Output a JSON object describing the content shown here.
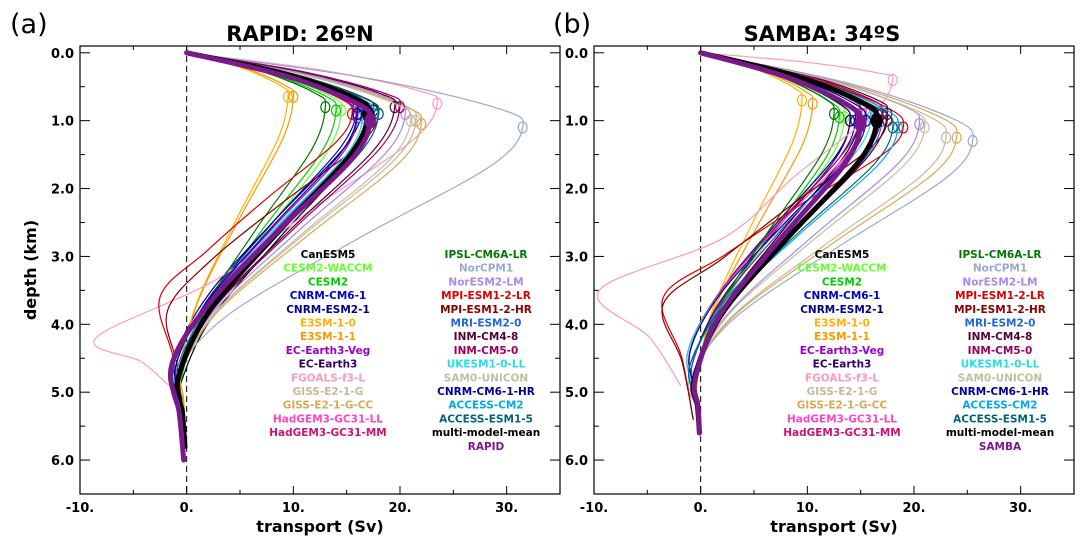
{
  "chart_data": [
    {
      "type": "line",
      "panel_label": "(a)",
      "title": "RAPID: 26ºN",
      "xlabel": "transport (Sv)",
      "ylabel": "depth (km)",
      "xlim": [
        -10,
        35
      ],
      "ylim": [
        6.5,
        -0.1
      ],
      "x_ticks": [
        "-10.",
        "0.",
        "10.",
        "20.",
        "30."
      ],
      "y_ticks": [
        "0.0",
        "1.0",
        "2.0",
        "3.0",
        "4.0",
        "5.0",
        "6.0"
      ],
      "legend_placement": "lower-right",
      "series": [
        {
          "name": "CanESM5",
          "color": "#000000",
          "peak": 17.5,
          "peak_depth": 0.85,
          "min": -0.8,
          "min_depth": 5.0,
          "max_depth": 5.6,
          "width": 1.2
        },
        {
          "name": "CESM2-WACCM",
          "color": "#66ff33",
          "peak": 14.5,
          "peak_depth": 0.85,
          "min": -0.8,
          "min_depth": 4.9,
          "max_depth": 5.6,
          "width": 1.2
        },
        {
          "name": "CESM2",
          "color": "#00cc00",
          "peak": 14.0,
          "peak_depth": 0.85,
          "min": -0.5,
          "min_depth": 4.8,
          "max_depth": 5.6,
          "width": 1.2
        },
        {
          "name": "CNRM-CM6-1",
          "color": "#0000cc",
          "peak": 16.0,
          "peak_depth": 0.8,
          "min": -1.0,
          "min_depth": 4.6,
          "max_depth": 5.6,
          "width": 1.2
        },
        {
          "name": "CNRM-ESM2-1",
          "color": "#00008b",
          "peak": 16.5,
          "peak_depth": 0.8,
          "min": -1.1,
          "min_depth": 4.5,
          "max_depth": 5.6,
          "width": 1.2
        },
        {
          "name": "E3SM-1-0",
          "color": "#ffb000",
          "peak": 9.5,
          "peak_depth": 0.65,
          "min": -0.6,
          "min_depth": 4.6,
          "max_depth": 5.6,
          "width": 1.2
        },
        {
          "name": "E3SM-1-1",
          "color": "#f59a00",
          "peak": 10.0,
          "peak_depth": 0.65,
          "min": -0.6,
          "min_depth": 4.6,
          "max_depth": 5.6,
          "width": 1.2
        },
        {
          "name": "EC-Earth3-Veg",
          "color": "#9900cc",
          "peak": 16.0,
          "peak_depth": 0.95,
          "min": -1.2,
          "min_depth": 4.6,
          "max_depth": 5.6,
          "width": 1.2
        },
        {
          "name": "EC-Earth3",
          "color": "#330066",
          "peak": 17.0,
          "peak_depth": 0.95,
          "min": -1.2,
          "min_depth": 4.6,
          "max_depth": 5.6,
          "width": 1.2
        },
        {
          "name": "FGOALS-f3-L",
          "color": "#ff99bb",
          "peak": 23.5,
          "peak_depth": 0.75,
          "min": -8.5,
          "min_depth": 4.2,
          "max_depth": 4.9,
          "width": 1.2
        },
        {
          "name": "GISS-E2-1-G",
          "color": "#c8b89a",
          "peak": 21.5,
          "peak_depth": 1.0,
          "min": -0.7,
          "min_depth": 4.8,
          "max_depth": 5.6,
          "width": 1.2
        },
        {
          "name": "GISS-E2-1-G-CC",
          "color": "#d4aa55",
          "peak": 22.0,
          "peak_depth": 1.05,
          "min": -0.7,
          "min_depth": 4.8,
          "max_depth": 5.6,
          "width": 1.2
        },
        {
          "name": "HadGEM3-GC31-LL",
          "color": "#ff44cc",
          "peak": 16.5,
          "peak_depth": 0.95,
          "min": -1.4,
          "min_depth": 4.6,
          "max_depth": 5.6,
          "width": 1.2
        },
        {
          "name": "HadGEM3-GC31-MM",
          "color": "#cc1177",
          "peak": 17.0,
          "peak_depth": 0.95,
          "min": -1.2,
          "min_depth": 4.6,
          "max_depth": 5.6,
          "width": 1.2
        },
        {
          "name": "IPSL-CM6A-LR",
          "color": "#007700",
          "peak": 13.0,
          "peak_depth": 0.8,
          "min": -1.0,
          "min_depth": 4.8,
          "max_depth": 5.6,
          "width": 1.2
        },
        {
          "name": "NorCPM1",
          "color": "#99aacc",
          "peak": 31.5,
          "peak_depth": 1.1,
          "min": -1.2,
          "min_depth": 4.8,
          "max_depth": 6.0,
          "width": 1.2
        },
        {
          "name": "NorESM2-LM",
          "color": "#aa88ee",
          "peak": 20.5,
          "peak_depth": 0.9,
          "min": -1.0,
          "min_depth": 4.8,
          "max_depth": 5.8,
          "width": 1.2
        },
        {
          "name": "MPI-ESM1-2-LR",
          "color": "#dd0000",
          "peak": 15.5,
          "peak_depth": 0.9,
          "min": -2.5,
          "min_depth": 3.6,
          "max_depth": 5.4,
          "width": 1.2
        },
        {
          "name": "MPI-ESM1-2-HR",
          "color": "#880000",
          "peak": 18.0,
          "peak_depth": 0.9,
          "min": -1.8,
          "min_depth": 3.8,
          "max_depth": 5.4,
          "width": 1.2
        },
        {
          "name": "MRI-ESM2-0",
          "color": "#2266dd",
          "peak": 17.0,
          "peak_depth": 0.85,
          "min": -1.0,
          "min_depth": 4.7,
          "max_depth": 5.6,
          "width": 1.2
        },
        {
          "name": "INM-CM4-8",
          "color": "#550033",
          "peak": 19.5,
          "peak_depth": 0.8,
          "min": -0.8,
          "min_depth": 4.8,
          "max_depth": 5.6,
          "width": 1.2
        },
        {
          "name": "INM-CM5-0",
          "color": "#990066",
          "peak": 20.0,
          "peak_depth": 0.8,
          "min": -0.8,
          "min_depth": 4.8,
          "max_depth": 5.6,
          "width": 1.2
        },
        {
          "name": "UKESM1-0-LL",
          "color": "#22ddee",
          "peak": 16.5,
          "peak_depth": 0.95,
          "min": -1.2,
          "min_depth": 4.6,
          "max_depth": 5.6,
          "width": 1.2
        },
        {
          "name": "SAM0-UNICON",
          "color": "#c0c0a0",
          "peak": 21.0,
          "peak_depth": 1.0,
          "min": -0.8,
          "min_depth": 4.8,
          "max_depth": 5.6,
          "width": 1.2
        },
        {
          "name": "CNRM-CM6-1-HR",
          "color": "#000099",
          "peak": 16.0,
          "peak_depth": 0.9,
          "min": -1.0,
          "min_depth": 4.6,
          "max_depth": 5.6,
          "width": 1.2
        },
        {
          "name": "ACCESS-CM2",
          "color": "#00aaee",
          "peak": 17.5,
          "peak_depth": 0.9,
          "min": -1.3,
          "min_depth": 4.6,
          "max_depth": 5.6,
          "width": 1.2
        },
        {
          "name": "ACCESS-ESM1-5",
          "color": "#006677",
          "peak": 18.0,
          "peak_depth": 0.9,
          "min": -1.3,
          "min_depth": 4.6,
          "max_depth": 5.6,
          "width": 1.2
        },
        {
          "name": "multi-model-mean",
          "color": "#000000",
          "peak": 17.0,
          "peak_depth": 0.9,
          "min": -0.8,
          "min_depth": 4.8,
          "max_depth": 5.8,
          "width": 5
        },
        {
          "name": "RAPID",
          "color": "#7a1a8a",
          "peak": 17.2,
          "peak_depth": 1.0,
          "min": -1.4,
          "min_depth": 4.6,
          "max_depth": 6.0,
          "width": 5
        }
      ]
    },
    {
      "type": "line",
      "panel_label": "(b)",
      "title": "SAMBA: 34ºS",
      "xlabel": "transport (Sv)",
      "ylabel": "",
      "xlim": [
        -10,
        35
      ],
      "ylim": [
        6.5,
        -0.1
      ],
      "x_ticks": [
        "-10.",
        "0.",
        "10.",
        "20.",
        "30."
      ],
      "y_ticks": [
        "0.0",
        "1.0",
        "2.0",
        "3.0",
        "4.0",
        "5.0",
        "6.0"
      ],
      "legend_placement": "lower-right",
      "series": [
        {
          "name": "CanESM5",
          "color": "#000000",
          "peak": 15.0,
          "peak_depth": 0.9,
          "min": -0.5,
          "min_depth": 4.8,
          "max_depth": 5.6,
          "width": 1.2
        },
        {
          "name": "CESM2-WACCM",
          "color": "#66ff33",
          "peak": 13.5,
          "peak_depth": 0.95,
          "min": -0.5,
          "min_depth": 4.8,
          "max_depth": 5.6,
          "width": 1.2
        },
        {
          "name": "CESM2",
          "color": "#00cc00",
          "peak": 13.0,
          "peak_depth": 0.95,
          "min": -0.4,
          "min_depth": 4.8,
          "max_depth": 5.6,
          "width": 1.2
        },
        {
          "name": "CNRM-CM6-1",
          "color": "#0000cc",
          "peak": 14.5,
          "peak_depth": 1.0,
          "min": -1.0,
          "min_depth": 4.4,
          "max_depth": 5.6,
          "width": 1.2
        },
        {
          "name": "CNRM-ESM2-1",
          "color": "#00008b",
          "peak": 14.0,
          "peak_depth": 1.0,
          "min": -1.0,
          "min_depth": 4.4,
          "max_depth": 5.6,
          "width": 1.2
        },
        {
          "name": "E3SM-1-0",
          "color": "#ffb000",
          "peak": 9.5,
          "peak_depth": 0.7,
          "min": -0.3,
          "min_depth": 4.8,
          "max_depth": 5.6,
          "width": 1.2
        },
        {
          "name": "E3SM-1-1",
          "color": "#f59a00",
          "peak": 10.5,
          "peak_depth": 0.75,
          "min": -0.3,
          "min_depth": 4.8,
          "max_depth": 5.6,
          "width": 1.2
        },
        {
          "name": "EC-Earth3-Veg",
          "color": "#9900cc",
          "peak": 15.0,
          "peak_depth": 1.0,
          "min": -0.8,
          "min_depth": 4.6,
          "max_depth": 5.6,
          "width": 1.2
        },
        {
          "name": "EC-Earth3",
          "color": "#330066",
          "peak": 14.0,
          "peak_depth": 1.0,
          "min": -0.8,
          "min_depth": 4.6,
          "max_depth": 5.6,
          "width": 1.2
        },
        {
          "name": "FGOALS-f3-L",
          "color": "#ff99bb",
          "peak": 18.0,
          "peak_depth": 0.4,
          "min": -9.5,
          "min_depth": 3.5,
          "max_depth": 4.9,
          "width": 1.2
        },
        {
          "name": "GISS-E2-1-G",
          "color": "#c8b89a",
          "peak": 23.0,
          "peak_depth": 1.25,
          "min": -0.8,
          "min_depth": 4.8,
          "max_depth": 5.6,
          "width": 1.2
        },
        {
          "name": "GISS-E2-1-G-CC",
          "color": "#d4aa55",
          "peak": 24.0,
          "peak_depth": 1.25,
          "min": -0.8,
          "min_depth": 4.8,
          "max_depth": 5.6,
          "width": 1.2
        },
        {
          "name": "HadGEM3-GC31-LL",
          "color": "#ff44cc",
          "peak": 15.5,
          "peak_depth": 0.9,
          "min": -1.2,
          "min_depth": 4.4,
          "max_depth": 5.6,
          "width": 1.2
        },
        {
          "name": "HadGEM3-GC31-MM",
          "color": "#cc1177",
          "peak": 15.0,
          "peak_depth": 0.9,
          "min": -1.2,
          "min_depth": 4.4,
          "max_depth": 5.6,
          "width": 1.2
        },
        {
          "name": "IPSL-CM6A-LR",
          "color": "#007700",
          "peak": 12.5,
          "peak_depth": 0.9,
          "min": -0.6,
          "min_depth": 4.8,
          "max_depth": 5.6,
          "width": 1.2
        },
        {
          "name": "NorCPM1",
          "color": "#99aacc",
          "peak": 25.5,
          "peak_depth": 1.3,
          "min": -1.0,
          "min_depth": 4.8,
          "max_depth": 5.6,
          "width": 1.2
        },
        {
          "name": "NorESM2-LM",
          "color": "#aa88ee",
          "peak": 20.5,
          "peak_depth": 1.05,
          "min": -0.8,
          "min_depth": 4.8,
          "max_depth": 5.6,
          "width": 1.2
        },
        {
          "name": "MPI-ESM1-2-LR",
          "color": "#dd0000",
          "peak": 19.0,
          "peak_depth": 1.1,
          "min": -3.5,
          "min_depth": 3.6,
          "max_depth": 5.4,
          "width": 1.2
        },
        {
          "name": "MPI-ESM1-2-HR",
          "color": "#880000",
          "peak": 17.5,
          "peak_depth": 1.0,
          "min": -3.5,
          "min_depth": 3.7,
          "max_depth": 5.4,
          "width": 1.2
        },
        {
          "name": "MRI-ESM2-0",
          "color": "#2266dd",
          "peak": 17.0,
          "peak_depth": 1.0,
          "min": -0.8,
          "min_depth": 4.6,
          "max_depth": 5.6,
          "width": 1.2
        },
        {
          "name": "INM-CM4-8",
          "color": "#550033",
          "peak": 17.5,
          "peak_depth": 0.9,
          "min": -0.6,
          "min_depth": 4.8,
          "max_depth": 5.6,
          "width": 1.2
        },
        {
          "name": "INM-CM5-0",
          "color": "#990066",
          "peak": 17.0,
          "peak_depth": 0.9,
          "min": -0.6,
          "min_depth": 4.8,
          "max_depth": 5.6,
          "width": 1.2
        },
        {
          "name": "UKESM1-0-LL",
          "color": "#22ddee",
          "peak": 16.0,
          "peak_depth": 0.95,
          "min": -1.2,
          "min_depth": 4.4,
          "max_depth": 5.6,
          "width": 1.2
        },
        {
          "name": "SAM0-UNICON",
          "color": "#c0c0a0",
          "peak": 21.0,
          "peak_depth": 1.1,
          "min": -0.6,
          "min_depth": 4.8,
          "max_depth": 5.6,
          "width": 1.2
        },
        {
          "name": "CNRM-CM6-1-HR",
          "color": "#000099",
          "peak": 15.5,
          "peak_depth": 1.0,
          "min": -1.0,
          "min_depth": 4.4,
          "max_depth": 5.6,
          "width": 1.2
        },
        {
          "name": "ACCESS-CM2",
          "color": "#00aaee",
          "peak": 18.5,
          "peak_depth": 1.1,
          "min": -1.0,
          "min_depth": 4.6,
          "max_depth": 5.6,
          "width": 1.2
        },
        {
          "name": "ACCESS-ESM1-5",
          "color": "#006677",
          "peak": 18.0,
          "peak_depth": 1.1,
          "min": -1.0,
          "min_depth": 4.6,
          "max_depth": 5.6,
          "width": 1.2
        },
        {
          "name": "multi-model-mean",
          "color": "#000000",
          "peak": 16.5,
          "peak_depth": 1.0,
          "min": -0.6,
          "min_depth": 4.8,
          "max_depth": 5.6,
          "width": 5
        },
        {
          "name": "SAMBA",
          "color": "#7a1a8a",
          "peak": 15.0,
          "peak_depth": 1.05,
          "min": -0.5,
          "min_depth": 4.8,
          "max_depth": 5.6,
          "width": 5
        }
      ]
    }
  ]
}
